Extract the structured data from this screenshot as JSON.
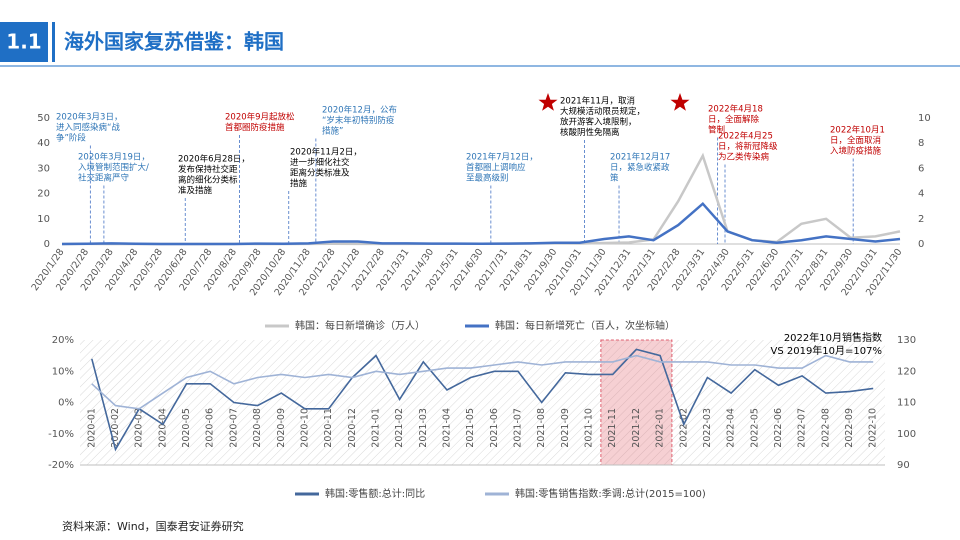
{
  "header": {
    "number": "1.1",
    "title": "海外国家复苏借鉴：韩国"
  },
  "source": "资料来源：Wind，国泰君安证券研究",
  "chart_data": [
    {
      "type": "line",
      "categories": [
        "2020/1/28",
        "2020/2/28",
        "2020/3/28",
        "2020/4/28",
        "2020/5/28",
        "2020/6/28",
        "2020/7/28",
        "2020/8/28",
        "2020/9/28",
        "2020/10/28",
        "2020/11/28",
        "2020/12/28",
        "2021/1/28",
        "2021/2/28",
        "2021/3/31",
        "2021/4/30",
        "2021/5/31",
        "2021/6/30",
        "2021/7/31",
        "2021/8/31",
        "2021/9/30",
        "2021/10/31",
        "2021/11/30",
        "2021/12/31",
        "2022/1/31",
        "2022/2/28",
        "2022/3/31",
        "2022/4/30",
        "2022/5/31",
        "2022/6/30",
        "2022/7/31",
        "2022/8/31",
        "2022/9/30",
        "2022/10/31",
        "2022/11/30"
      ],
      "series": [
        {
          "name": "韩国：每日新增确诊（万人）",
          "color": "#c8c8c8",
          "values": [
            0,
            0.05,
            0.01,
            0.01,
            0.01,
            0.01,
            0.01,
            0.03,
            0.01,
            0.01,
            0.05,
            0.1,
            0.05,
            0.04,
            0.05,
            0.07,
            0.06,
            0.08,
            0.15,
            0.2,
            0.25,
            0.2,
            0.4,
            0.6,
            1.8,
            17,
            35,
            5,
            1.5,
            0.8,
            8,
            10,
            2.5,
            3,
            5
          ]
        },
        {
          "name": "韩国：每日新增死亡（百人，次坐标轴）",
          "color": "#4472c4",
          "axis": "y2",
          "values": [
            0,
            0.02,
            0.05,
            0.02,
            0,
            0,
            0,
            0,
            0.03,
            0.02,
            0.05,
            0.2,
            0.2,
            0.05,
            0.05,
            0.03,
            0.03,
            0.02,
            0.03,
            0.05,
            0.1,
            0.1,
            0.4,
            0.6,
            0.3,
            1.5,
            3.2,
            1,
            0.3,
            0.1,
            0.3,
            0.6,
            0.4,
            0.2,
            0.4
          ]
        }
      ],
      "ylim": [
        0,
        50
      ],
      "yticks": [
        0,
        10,
        20,
        30,
        40,
        50
      ],
      "y2lim": [
        0,
        10
      ],
      "y2ticks": [
        0,
        2,
        4,
        6,
        8,
        10
      ],
      "grid": false,
      "annotations": [
        {
          "lines": [
            "2020年3月3日，",
            "进入同感染病“战",
            "争”阶段"
          ],
          "color": "#2e75b6"
        },
        {
          "lines": [
            "2020年3月19日，",
            "入境管制范围扩大/",
            "社交距离严守"
          ],
          "color": "#2e75b6"
        },
        {
          "lines": [
            "2020年6月28日，",
            "发布保持社交距",
            "离的细化分类标",
            "准及措施"
          ],
          "color": "#000000"
        },
        {
          "lines": [
            "2020年9月起放松",
            "首都圈防疫措施"
          ],
          "color": "#c00000"
        },
        {
          "lines": [
            "2020年11月2日，",
            "进一步细化社交",
            "距离分类标准及",
            "措施"
          ],
          "color": "#000000"
        },
        {
          "lines": [
            "2020年12月，公布",
            "“岁末年初特别防疫",
            "措施”"
          ],
          "color": "#2e75b6"
        },
        {
          "lines": [
            "2021年7月12日，",
            "首都圈上调响应",
            "至最高级别"
          ],
          "color": "#2e75b6"
        },
        {
          "lines": [
            "2021年11月，取消",
            "大规模活动限员规定，",
            "放开游客入境限制，",
            "核酸阴性免隔离"
          ],
          "color": "#000000"
        },
        {
          "lines": [
            "2021年12月17",
            "日，紧急收紧政",
            "策"
          ],
          "color": "#2e75b6"
        },
        {
          "lines": [
            "2022年4月18",
            "日，全面解除",
            "管制"
          ],
          "color": "#c00000"
        },
        {
          "lines": [
            "2022年4月25",
            "日，将新冠降级",
            "为乙类传染病"
          ],
          "color": "#c00000"
        },
        {
          "lines": [
            "2022年10月1",
            "日，全面取消",
            "入境防疫措施"
          ],
          "color": "#c00000"
        }
      ]
    },
    {
      "type": "line",
      "categories": [
        "2020-01",
        "2020-02",
        "2020-03",
        "2020-04",
        "2020-05",
        "2020-06",
        "2020-07",
        "2020-08",
        "2020-09",
        "2020-10",
        "2020-11",
        "2020-12",
        "2021-01",
        "2021-02",
        "2021-03",
        "2021-04",
        "2021-05",
        "2021-06",
        "2021-07",
        "2021-08",
        "2021-09",
        "2021-10",
        "2021-11",
        "2021-12",
        "2022-01",
        "2022-02",
        "2022-03",
        "2022-04",
        "2022-05",
        "2022-06",
        "2022-07",
        "2022-08",
        "2022-09",
        "2022-10"
      ],
      "series": [
        {
          "name": "韩国:零售额:总计:同比",
          "color": "#44689c",
          "values": [
            14,
            -15,
            -2,
            -7,
            6,
            6,
            0,
            -1,
            3,
            -2,
            -2,
            8,
            15,
            1,
            13,
            4,
            8,
            10,
            10,
            0,
            9.5,
            9,
            9,
            17,
            15,
            -7,
            8,
            3,
            10.5,
            5.5,
            8.5,
            3,
            3.5,
            4.5
          ]
        },
        {
          "name": "韩国:零售销售指数:季调:总计(2015=100)",
          "color": "#9fb3d6",
          "axis": "y2",
          "values": [
            116,
            109,
            108,
            113,
            118,
            120,
            116,
            118,
            119,
            118,
            119,
            118,
            120,
            119,
            120,
            121,
            121,
            122,
            123,
            122,
            123,
            123,
            123,
            125,
            123,
            123,
            123,
            122,
            122,
            121,
            121,
            125,
            123,
            123
          ]
        }
      ],
      "ylim": [
        -20,
        20
      ],
      "yticks": [
        {
          "value": -20,
          "label": "-20%"
        },
        {
          "value": -10,
          "label": "-10%"
        },
        {
          "value": 0,
          "label": "0%"
        },
        {
          "value": 10,
          "label": "10%"
        },
        {
          "value": 20,
          "label": "20%"
        }
      ],
      "y2lim": [
        90,
        130
      ],
      "y2ticks": [
        90,
        100,
        110,
        120,
        130
      ],
      "grid": false,
      "highlight": [
        "2021-11",
        "2022-01"
      ],
      "annotations": [
        {
          "lines": [
            "2022年10月销售指数",
            "VS 2019年10月=107%"
          ],
          "color": "#000000"
        }
      ]
    }
  ]
}
